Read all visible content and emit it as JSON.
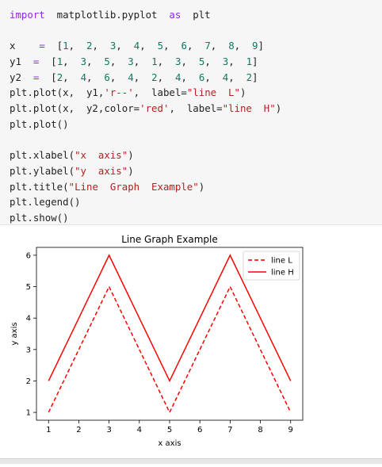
{
  "code": {
    "lines": [
      [
        [
          "kw",
          "import"
        ],
        [
          "t",
          "  matplotlib.pyplot  "
        ],
        [
          "kw",
          "as"
        ],
        [
          "t",
          "  plt"
        ]
      ],
      [],
      [
        [
          "t",
          "x    "
        ],
        [
          "op",
          "="
        ],
        [
          "t",
          "  ["
        ],
        [
          "num",
          "1"
        ],
        [
          "t",
          ",  "
        ],
        [
          "num",
          "2"
        ],
        [
          "t",
          ",  "
        ],
        [
          "num",
          "3"
        ],
        [
          "t",
          ",  "
        ],
        [
          "num",
          "4"
        ],
        [
          "t",
          ",  "
        ],
        [
          "num",
          "5"
        ],
        [
          "t",
          ",  "
        ],
        [
          "num",
          "6"
        ],
        [
          "t",
          ",  "
        ],
        [
          "num",
          "7"
        ],
        [
          "t",
          ",  "
        ],
        [
          "num",
          "8"
        ],
        [
          "t",
          ",  "
        ],
        [
          "num",
          "9"
        ],
        [
          "t",
          "]"
        ]
      ],
      [
        [
          "t",
          "y1  "
        ],
        [
          "op",
          "="
        ],
        [
          "t",
          "  ["
        ],
        [
          "num",
          "1"
        ],
        [
          "t",
          ",  "
        ],
        [
          "num",
          "3"
        ],
        [
          "t",
          ",  "
        ],
        [
          "num",
          "5"
        ],
        [
          "t",
          ",  "
        ],
        [
          "num",
          "3"
        ],
        [
          "t",
          ",  "
        ],
        [
          "num",
          "1"
        ],
        [
          "t",
          ",  "
        ],
        [
          "num",
          "3"
        ],
        [
          "t",
          ",  "
        ],
        [
          "num",
          "5"
        ],
        [
          "t",
          ",  "
        ],
        [
          "num",
          "3"
        ],
        [
          "t",
          ",  "
        ],
        [
          "num",
          "1"
        ],
        [
          "t",
          "]"
        ]
      ],
      [
        [
          "t",
          "y2  "
        ],
        [
          "op",
          "="
        ],
        [
          "t",
          "  ["
        ],
        [
          "num",
          "2"
        ],
        [
          "t",
          ",  "
        ],
        [
          "num",
          "4"
        ],
        [
          "t",
          ",  "
        ],
        [
          "num",
          "6"
        ],
        [
          "t",
          ",  "
        ],
        [
          "num",
          "4"
        ],
        [
          "t",
          ",  "
        ],
        [
          "num",
          "2"
        ],
        [
          "t",
          ",  "
        ],
        [
          "num",
          "4"
        ],
        [
          "t",
          ",  "
        ],
        [
          "num",
          "6"
        ],
        [
          "t",
          ",  "
        ],
        [
          "num",
          "4"
        ],
        [
          "t",
          ",  "
        ],
        [
          "num",
          "2"
        ],
        [
          "t",
          "]"
        ]
      ],
      [
        [
          "t",
          "plt.plot(x,  y1,"
        ],
        [
          "str",
          "'r--'"
        ],
        [
          "t",
          ",  label="
        ],
        [
          "str",
          "\"line  L\""
        ],
        [
          "t",
          ")"
        ]
      ],
      [
        [
          "t",
          "plt.plot(x,  y2,color="
        ],
        [
          "str",
          "'red'"
        ],
        [
          "t",
          ",  label="
        ],
        [
          "str",
          "\"line  H\""
        ],
        [
          "t",
          ")"
        ]
      ],
      [
        [
          "t",
          "plt.plot()"
        ]
      ],
      [],
      [
        [
          "t",
          "plt.xlabel("
        ],
        [
          "str",
          "\"x  axis\""
        ],
        [
          "t",
          ")"
        ]
      ],
      [
        [
          "t",
          "plt.ylabel("
        ],
        [
          "str",
          "\"y  axis\""
        ],
        [
          "t",
          ")"
        ]
      ],
      [
        [
          "t",
          "plt.title("
        ],
        [
          "str",
          "\"Line  Graph  Example\""
        ],
        [
          "t",
          ")"
        ]
      ],
      [
        [
          "t",
          "plt.legend()"
        ]
      ],
      [
        [
          "t",
          "plt.show()"
        ]
      ]
    ]
  },
  "chart_data": {
    "type": "line",
    "title": "Line Graph Example",
    "xlabel": "x axis",
    "ylabel": "y axis",
    "x": [
      1,
      2,
      3,
      4,
      5,
      6,
      7,
      8,
      9
    ],
    "xticks": [
      "1",
      "2",
      "3",
      "4",
      "5",
      "6",
      "7",
      "8",
      "9"
    ],
    "yticks": [
      "1",
      "2",
      "3",
      "4",
      "5",
      "6"
    ],
    "xlim": [
      0.6,
      9.4
    ],
    "ylim": [
      0.75,
      6.25
    ],
    "grid": false,
    "legend_position": "top-right",
    "series": [
      {
        "name": "line L",
        "values": [
          1,
          3,
          5,
          3,
          1,
          3,
          5,
          3,
          1
        ],
        "color": "#ff0000",
        "style": "dashed"
      },
      {
        "name": "line H",
        "values": [
          2,
          4,
          6,
          4,
          2,
          4,
          6,
          4,
          2
        ],
        "color": "#ff0000",
        "style": "solid"
      }
    ]
  }
}
